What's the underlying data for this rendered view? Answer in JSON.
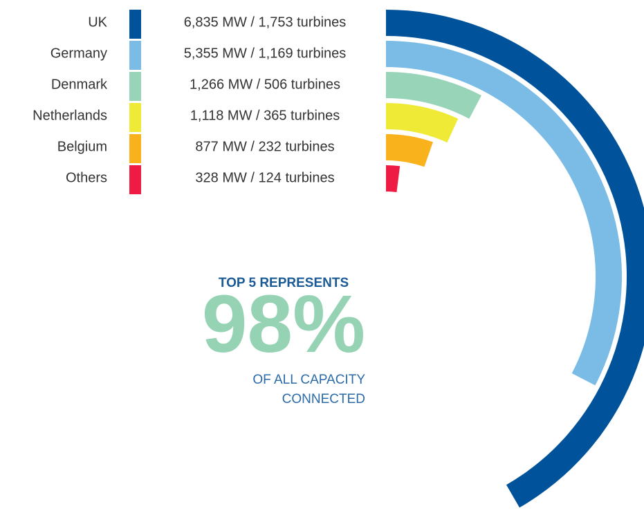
{
  "chart_data": {
    "type": "radial_bar",
    "categories": [
      "UK",
      "Germany",
      "Denmark",
      "Netherlands",
      "Belgium",
      "Others"
    ],
    "values": [
      6835,
      5355,
      1266,
      1118,
      877,
      328
    ],
    "value_labels": [
      "6,835 MW / 1,753 turbines",
      "5,355 MW / 1,169 turbines",
      "1,266 MW /  506 turbines",
      "1,118 MW /  365 turbines",
      "877 MW /  232 turbines",
      "328 MW / 124 turbines"
    ],
    "colors": [
      "#00539b",
      "#7bbce6",
      "#98d4b8",
      "#eeea36",
      "#f9b21b",
      "#ee1c45"
    ],
    "annotation": {
      "title": "TOP 5 REPRESENTS",
      "label": "98%",
      "caption": [
        "OF ALL CAPACITY",
        "CONNECTED"
      ]
    }
  }
}
